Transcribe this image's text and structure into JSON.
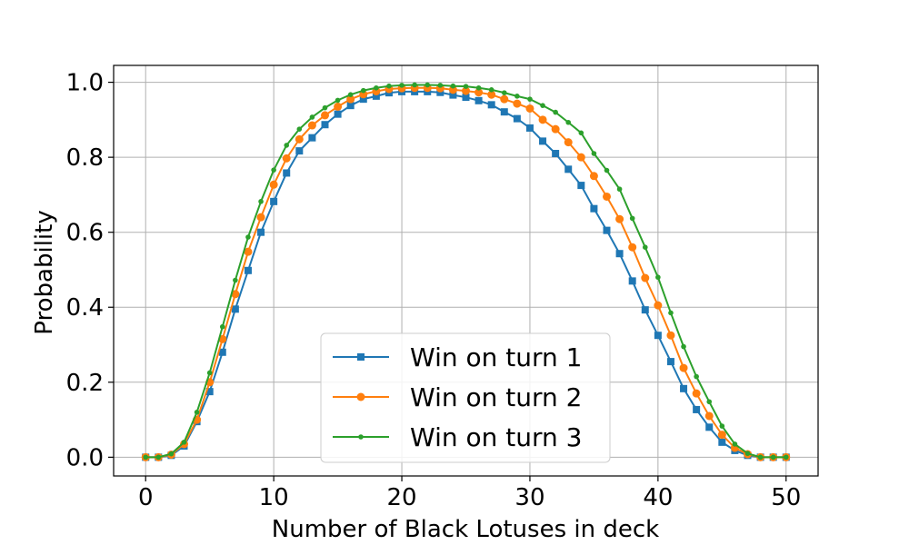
{
  "chart_data": {
    "type": "line",
    "title": "",
    "xlabel": "Number of Black Lotuses in deck",
    "ylabel": "Probability",
    "xlim": [
      -2.5,
      52.5
    ],
    "ylim": [
      -0.05,
      1.045
    ],
    "xticks": [
      0,
      10,
      20,
      30,
      40,
      50
    ],
    "xtick_labels": [
      "0",
      "10",
      "20",
      "30",
      "40",
      "50"
    ],
    "yticks": [
      0.0,
      0.2,
      0.4,
      0.6,
      0.8,
      1.0
    ],
    "ytick_labels": [
      "0.0",
      "0.2",
      "0.4",
      "0.6",
      "0.8",
      "1.0"
    ],
    "grid": true,
    "legend_position": "bottom-center",
    "x": [
      0,
      1,
      2,
      3,
      4,
      5,
      6,
      7,
      8,
      9,
      10,
      11,
      12,
      13,
      14,
      15,
      16,
      17,
      18,
      19,
      20,
      21,
      22,
      23,
      24,
      25,
      26,
      27,
      28,
      29,
      30,
      31,
      32,
      33,
      34,
      35,
      36,
      37,
      38,
      39,
      40,
      41,
      42,
      43,
      44,
      45,
      46,
      47,
      48,
      49,
      50
    ],
    "series": [
      {
        "name": "Win on turn 1",
        "color": "#1f77b4",
        "marker": "square",
        "values": [
          0.0,
          0.0,
          0.005,
          0.03,
          0.095,
          0.175,
          0.28,
          0.395,
          0.498,
          0.6,
          0.682,
          0.758,
          0.817,
          0.852,
          0.887,
          0.915,
          0.938,
          0.955,
          0.963,
          0.972,
          0.975,
          0.975,
          0.975,
          0.973,
          0.966,
          0.96,
          0.951,
          0.94,
          0.921,
          0.903,
          0.878,
          0.843,
          0.81,
          0.768,
          0.725,
          0.663,
          0.605,
          0.543,
          0.47,
          0.393,
          0.325,
          0.255,
          0.183,
          0.127,
          0.08,
          0.04,
          0.018,
          0.005,
          0.0,
          0.0,
          0.0
        ]
      },
      {
        "name": "Win on turn 2",
        "color": "#ff7f0e",
        "marker": "circle",
        "values": [
          0.0,
          0.0,
          0.007,
          0.035,
          0.1,
          0.2,
          0.315,
          0.435,
          0.548,
          0.64,
          0.727,
          0.797,
          0.848,
          0.885,
          0.912,
          0.935,
          0.955,
          0.968,
          0.976,
          0.982,
          0.984,
          0.985,
          0.985,
          0.984,
          0.98,
          0.977,
          0.973,
          0.967,
          0.955,
          0.943,
          0.93,
          0.9,
          0.875,
          0.84,
          0.8,
          0.75,
          0.695,
          0.635,
          0.56,
          0.478,
          0.405,
          0.325,
          0.238,
          0.17,
          0.11,
          0.06,
          0.025,
          0.008,
          0.0,
          0.0,
          0.0
        ]
      },
      {
        "name": "Win on turn 3",
        "color": "#2ca02c",
        "marker": "point",
        "values": [
          0.0,
          0.0,
          0.009,
          0.04,
          0.12,
          0.225,
          0.348,
          0.472,
          0.587,
          0.682,
          0.766,
          0.832,
          0.875,
          0.907,
          0.932,
          0.952,
          0.967,
          0.978,
          0.985,
          0.99,
          0.992,
          0.993,
          0.993,
          0.992,
          0.99,
          0.989,
          0.985,
          0.98,
          0.972,
          0.963,
          0.955,
          0.938,
          0.92,
          0.893,
          0.865,
          0.81,
          0.765,
          0.715,
          0.637,
          0.56,
          0.48,
          0.385,
          0.295,
          0.215,
          0.148,
          0.083,
          0.035,
          0.01,
          0.0,
          0.0,
          0.0
        ]
      }
    ]
  }
}
